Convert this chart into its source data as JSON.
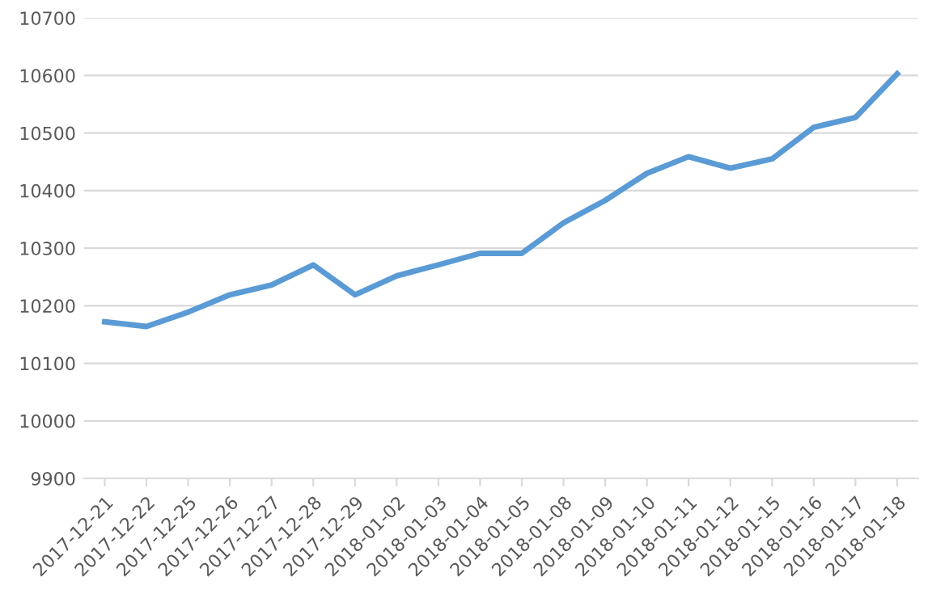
{
  "chart_data": {
    "type": "line",
    "categories": [
      "2017-12-21",
      "2017-12-22",
      "2017-12-25",
      "2017-12-26",
      "2017-12-27",
      "2017-12-28",
      "2017-12-29",
      "2018-01-02",
      "2018-01-03",
      "2018-01-04",
      "2018-01-05",
      "2018-01-08",
      "2018-01-09",
      "2018-01-10",
      "2018-01-11",
      "2018-01-12",
      "2018-01-15",
      "2018-01-16",
      "2018-01-17",
      "2018-01-18"
    ],
    "series": [
      {
        "color": "#5b9bd5",
        "values": [
          10172,
          10164,
          10189,
          10219,
          10236,
          10271,
          10219,
          10252,
          10271,
          10291,
          10291,
          10344,
          10383,
          10430,
          10459,
          10439,
          10455,
          10510,
          10527,
          10603
        ]
      }
    ],
    "ylim": [
      9900,
      10700
    ],
    "yticks": [
      9900,
      10000,
      10100,
      10200,
      10300,
      10400,
      10500,
      10600,
      10700
    ],
    "grid": "y",
    "marker": "none",
    "line_style": "solid"
  }
}
